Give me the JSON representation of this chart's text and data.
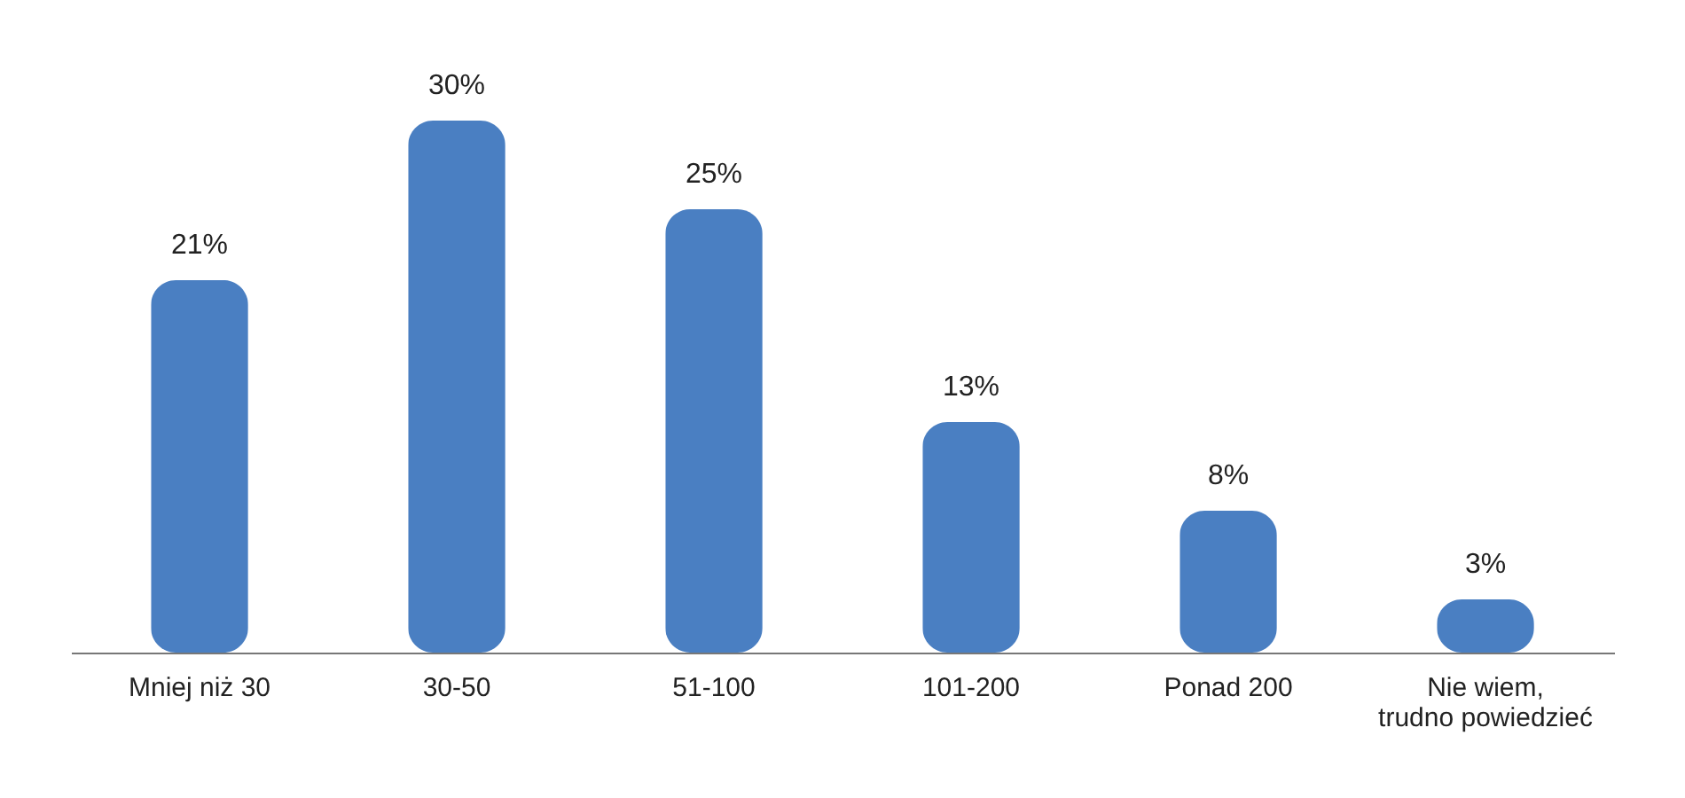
{
  "chart_data": {
    "type": "bar",
    "categories": [
      "Mniej niż 30",
      "30-50",
      "51-100",
      "101-200",
      "Ponad 200",
      "Nie wiem, trudno powiedzieć"
    ],
    "values": [
      21,
      30,
      25,
      13,
      8,
      3
    ],
    "value_labels": [
      "21%",
      "30%",
      "25%",
      "13%",
      "8%",
      "3%"
    ],
    "color": "#4a7fc2",
    "tick_labels": "x"
  }
}
